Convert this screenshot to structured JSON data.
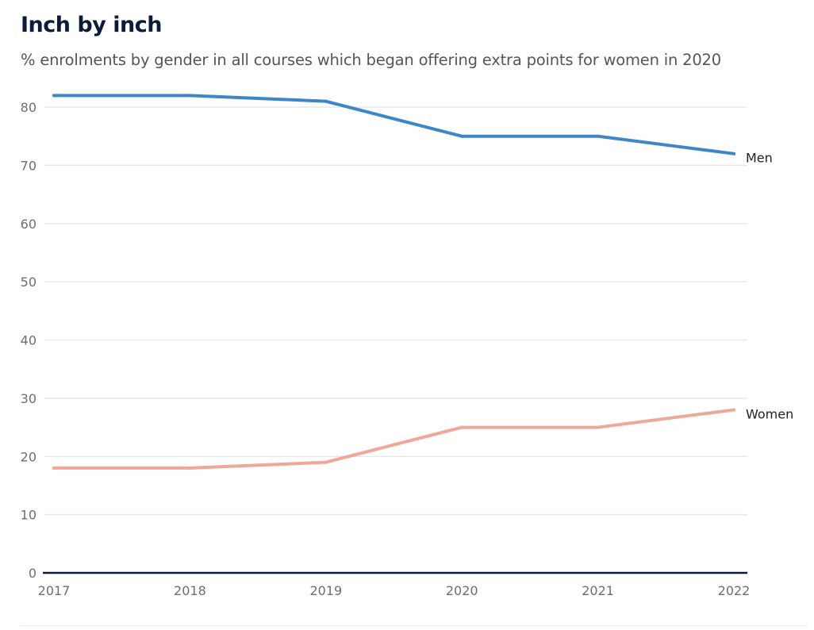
{
  "chart_data": {
    "type": "line",
    "title": "Inch by inch",
    "subtitle": "% enrolments by gender in all courses which began offering extra points for women in 2020",
    "x": [
      "2017",
      "2018",
      "2019",
      "2020",
      "2021",
      "2022"
    ],
    "ylim": [
      0,
      80
    ],
    "yticks": [
      0,
      10,
      20,
      30,
      40,
      50,
      60,
      70,
      80
    ],
    "grid": true,
    "xlabel": "",
    "ylabel": "",
    "series": [
      {
        "name": "Men",
        "color": "#3d87c9",
        "values": [
          82,
          82,
          81,
          75,
          75,
          72
        ]
      },
      {
        "name": "Women",
        "color": "#f0a79b",
        "values": [
          18,
          18,
          19,
          25,
          25,
          28
        ]
      }
    ]
  }
}
